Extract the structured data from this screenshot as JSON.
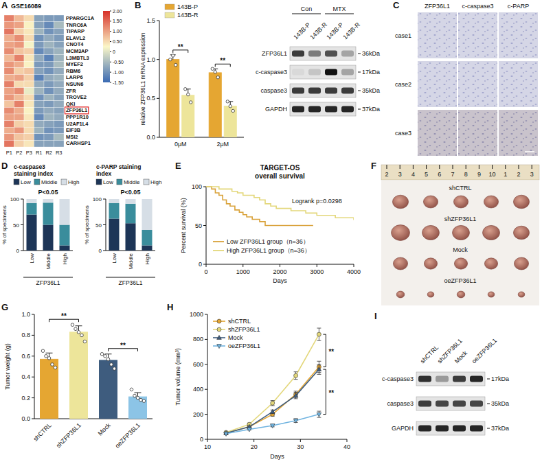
{
  "panel_letters": [
    "A",
    "B",
    "C",
    "D",
    "E",
    "F",
    "G",
    "H",
    "I"
  ],
  "chart_data": [
    {
      "type": "heatmap",
      "title": "GSE16089",
      "columns": [
        "P1",
        "P2",
        "P3",
        "R1",
        "R2",
        "R3"
      ],
      "rows": [
        "PPARGC1A",
        "TNRC6A",
        "TIPARP",
        "ELAVL2",
        "CNOT4",
        "MCM3AP",
        "L3MBTL3",
        "MYEF2",
        "RBM6",
        "LARP6",
        "NSUN6",
        "ZFR",
        "TROVE2",
        "QKI",
        "ZFP36L1",
        "PPP1R10",
        "U2AF1L4",
        "EIF3B",
        "MSI2",
        "CARHSP1"
      ],
      "cells": [
        [
          1.3,
          0.8,
          0.5,
          -0.8,
          -0.9,
          -0.9
        ],
        [
          1.1,
          1.0,
          0.3,
          -0.8,
          -1.1,
          -0.5
        ],
        [
          1.4,
          0.6,
          0.4,
          -0.6,
          -1.0,
          -0.8
        ],
        [
          0.9,
          1.2,
          0.5,
          -1.0,
          -0.7,
          -0.9
        ],
        [
          1.0,
          1.1,
          0.2,
          -0.9,
          -0.6,
          -0.8
        ],
        [
          1.2,
          0.7,
          0.6,
          -1.1,
          -0.8,
          -0.6
        ],
        [
          0.8,
          1.3,
          0.4,
          -0.7,
          -1.2,
          -0.6
        ],
        [
          1.1,
          0.9,
          0.3,
          -0.9,
          -0.9,
          -0.5
        ],
        [
          1.2,
          0.6,
          0.7,
          -0.8,
          -1.0,
          -0.7
        ],
        [
          0.9,
          1.0,
          0.6,
          -1.2,
          -0.7,
          -0.6
        ],
        [
          1.3,
          0.5,
          0.5,
          -0.7,
          -0.9,
          -0.7
        ],
        [
          1.0,
          1.2,
          0.1,
          -0.6,
          -1.0,
          -0.7
        ],
        [
          1.1,
          0.8,
          0.5,
          -1.0,
          -0.6,
          -0.8
        ],
        [
          0.7,
          1.3,
          0.4,
          -0.8,
          -0.9,
          -0.7
        ],
        [
          1.2,
          0.9,
          0.3,
          -0.9,
          -0.7,
          -0.8
        ],
        [
          1.0,
          1.0,
          0.4,
          -1.1,
          -0.6,
          -0.7
        ],
        [
          1.3,
          0.6,
          0.5,
          -0.7,
          -0.8,
          -0.9
        ],
        [
          0.9,
          1.1,
          0.5,
          -0.6,
          -1.0,
          -0.9
        ],
        [
          1.1,
          0.7,
          0.6,
          -1.0,
          -0.9,
          -0.5
        ],
        [
          1.4,
          0.6,
          0.4,
          -0.8,
          -0.8,
          -0.8
        ]
      ],
      "highlight": "ZFP36L1",
      "colorbar": {
        "range": [
          -1.5,
          2
        ],
        "ticks": [
          {
            "value": 2,
            "label": "2.00"
          },
          {
            "value": 1.5,
            "label": "1.50"
          },
          {
            "value": 1,
            "label": "1.00"
          },
          {
            "value": 0.5,
            "label": "0.50"
          },
          0,
          {
            "value": -0.5,
            "label": "-0.50"
          },
          {
            "value": -1,
            "label": "-1.00"
          },
          {
            "value": -1.5,
            "label": "-1.50"
          }
        ]
      }
    },
    {
      "type": "bar",
      "ylabel": "relative ZFP36L1 mRNA expression",
      "categories": [
        "0μM",
        "2μM"
      ],
      "series": [
        {
          "name": "143B-P",
          "color": "#E5A632",
          "values": [
            1.0,
            0.83
          ],
          "errors": [
            0.06,
            0.05
          ],
          "points": [
            [
              1.0,
              1.05,
              0.93
            ],
            [
              0.88,
              0.84,
              0.77
            ]
          ]
        },
        {
          "name": "143B-R",
          "color": "#EDE59A",
          "values": [
            0.54,
            0.4
          ],
          "errors": [
            0.08,
            0.06
          ],
          "points": [
            [
              0.62,
              0.55,
              0.45
            ],
            [
              0.46,
              0.4,
              0.34
            ]
          ]
        }
      ],
      "ylim": [
        0,
        1.5
      ],
      "yticks": [
        {
          "value": 0,
          "label": "0.0"
        },
        0.5,
        {
          "value": 1,
          "label": "1.0"
        },
        1.5
      ],
      "legend": "top",
      "annotations": [
        {
          "text": "**",
          "category": "0μM"
        },
        {
          "text": "**",
          "category": "2μM"
        }
      ]
    },
    {
      "type": "bar",
      "stacked": true,
      "title": "c-caspase3 staining index",
      "xlabel": "ZFP36L1",
      "ylabel": "% of specimens",
      "categories": [
        "Low",
        "Middle",
        "High"
      ],
      "series": [
        {
          "name": "Low",
          "color": "#1d3557",
          "values": [
            70,
            50,
            10
          ]
        },
        {
          "name": "Middle",
          "color": "#3a8d9c",
          "values": [
            22,
            43,
            40
          ]
        },
        {
          "name": "High",
          "color": "#d6dee6",
          "values": [
            8,
            7,
            50
          ]
        }
      ],
      "ylim": [
        0,
        100
      ],
      "yticks": [
        0,
        50,
        100
      ],
      "legend": "top",
      "annotation": "P<0.05"
    },
    {
      "type": "bar",
      "stacked": true,
      "title": "c-PARP staining index",
      "xlabel": "ZFP36L1",
      "ylabel": "% of specimens",
      "categories": [
        "Low",
        "Middle",
        "High"
      ],
      "series": [
        {
          "name": "Low",
          "color": "#1d3557",
          "values": [
            62,
            53,
            10
          ]
        },
        {
          "name": "Middle",
          "color": "#3a8d9c",
          "values": [
            30,
            38,
            30
          ]
        },
        {
          "name": "High",
          "color": "#d6dee6",
          "values": [
            8,
            9,
            60
          ]
        }
      ],
      "ylim": [
        0,
        100
      ],
      "yticks": [
        0,
        50,
        100
      ],
      "legend": "top",
      "annotation": "P<0.05"
    },
    {
      "type": "line",
      "line_style": "step",
      "title": "TARGET-OS overall survival",
      "annotation": "Logrank p=0.0298",
      "xlabel": "Days",
      "ylabel": "Percent survival (%)",
      "xlim": [
        0,
        4000
      ],
      "xticks": [
        0,
        1000,
        2000,
        3000,
        4000
      ],
      "ylim": [
        0,
        100
      ],
      "yticks": [
        0,
        50,
        100
      ],
      "legend": "lower left",
      "series": [
        {
          "name": "Low ZFP36L1 group（n=36）",
          "color": "#D9A23A",
          "x": [
            0,
            150,
            250,
            350,
            450,
            550,
            650,
            780,
            900,
            1000,
            1100,
            1250,
            1450,
            1600,
            2900
          ],
          "values": [
            100,
            97,
            92,
            89,
            83,
            78,
            75,
            70,
            67,
            64,
            61,
            58,
            55,
            50,
            50
          ]
        },
        {
          "name": "High ZFP36L1 group（n=36）",
          "color": "#E3D77A",
          "x": [
            0,
            350,
            700,
            850,
            1000,
            1300,
            1450,
            1600,
            1750,
            1900,
            2300,
            2700,
            3000,
            3500,
            4000
          ],
          "values": [
            100,
            97,
            94,
            92,
            89,
            86,
            83,
            78,
            75,
            72,
            69,
            66,
            63,
            60,
            57
          ]
        }
      ]
    },
    {
      "type": "bar",
      "ylabel": "Tumor weight (g)",
      "categories": [
        "shCTRL",
        "shZFP36L1",
        "Mock",
        "oeZFP36L1"
      ],
      "colors": [
        "#E5A632",
        "#EDE59A",
        "#3E5C7E",
        "#8CC4E6"
      ],
      "values": [
        0.57,
        0.83,
        0.56,
        0.21
      ],
      "errors": [
        0.06,
        0.06,
        0.06,
        0.04
      ],
      "points": [
        [
          0.65,
          0.6,
          0.58,
          0.52,
          0.49
        ],
        [
          0.9,
          0.86,
          0.83,
          0.8,
          0.74
        ],
        [
          0.62,
          0.6,
          0.57,
          0.52,
          0.48
        ],
        [
          0.28,
          0.22,
          0.2,
          0.18,
          0.17
        ]
      ],
      "ylim": [
        0,
        1
      ],
      "yticks": [
        {
          "value": 0,
          "label": "0.0"
        },
        0.2,
        0.4,
        0.6,
        0.8,
        {
          "value": 1,
          "label": "1.0"
        }
      ],
      "annotations": [
        {
          "text": "**",
          "categories": [
            "shCTRL",
            "shZFP36L1"
          ]
        },
        {
          "text": "**",
          "categories": [
            "Mock",
            "oeZFP36L1"
          ]
        }
      ]
    },
    {
      "type": "line",
      "xlabel": "Days",
      "ylabel": "Tumor volume (mm³)",
      "x": [
        14,
        19,
        24,
        29,
        34
      ],
      "series": [
        {
          "name": "shCTRL",
          "color": "#E5A632",
          "marker": "circle",
          "values": [
            50,
            100,
            200,
            360,
            580
          ],
          "errors": [
            5,
            8,
            15,
            25,
            45
          ]
        },
        {
          "name": "shZFP36L1",
          "color": "#E3D77A",
          "marker": "circle",
          "values": [
            55,
            120,
            290,
            510,
            840
          ],
          "errors": [
            5,
            10,
            20,
            30,
            50
          ]
        },
        {
          "name": "Mock",
          "color": "#3E5C7E",
          "marker": "triangle",
          "values": [
            50,
            100,
            220,
            350,
            560
          ],
          "errors": [
            5,
            8,
            15,
            25,
            40
          ]
        },
        {
          "name": "oeZFP36L1",
          "color": "#6FB3E0",
          "marker": "triangle-down",
          "values": [
            45,
            80,
            110,
            150,
            200
          ],
          "errors": [
            4,
            6,
            10,
            15,
            25
          ]
        }
      ],
      "xlim": [
        10,
        40
      ],
      "xticks": [
        10,
        20,
        30,
        40
      ],
      "ylim": [
        0,
        1000
      ],
      "yticks": [
        0,
        200,
        400,
        600,
        800,
        1000
      ],
      "legend": "upper left",
      "annotations": [
        {
          "text": "**",
          "series": [
            "shZFP36L1",
            "shCTRL"
          ]
        },
        {
          "text": "**",
          "series": [
            "Mock",
            "oeZFP36L1"
          ]
        }
      ]
    }
  ],
  "blot_b": {
    "groups": [
      "Con",
      "MTX"
    ],
    "lanes": [
      "143B-P",
      "143B-R",
      "143B-P",
      "143B-R"
    ],
    "rows": [
      {
        "label": "ZFP36L1",
        "size": "36kDa",
        "bands": [
          0.8,
          0.5,
          0.7,
          0.3
        ]
      },
      {
        "label": "c-caspase3",
        "size": "17kDa",
        "bands": [
          0.05,
          0.15,
          1.0,
          0.3
        ]
      },
      {
        "label": "caspase3",
        "size": "35kDa",
        "bands": [
          0.8,
          0.8,
          0.8,
          0.8
        ]
      },
      {
        "label": "GAPDH",
        "size": "37kDa",
        "bands": [
          0.9,
          0.9,
          0.9,
          0.9
        ]
      }
    ]
  },
  "ihc": {
    "columns": [
      "ZFP36L1",
      "c-caspase3",
      "c-PARP"
    ],
    "rows": [
      "case1",
      "case2",
      "case3"
    ]
  },
  "tumor_photo": {
    "ruler": [
      "2",
      "3",
      "4",
      "5",
      "6",
      "7",
      "8",
      "9",
      "10",
      "1",
      "2",
      "3"
    ],
    "rows": [
      {
        "label": "shCTRL",
        "sizes": [
          12,
          11,
          11,
          11,
          12
        ]
      },
      {
        "label": "shZFP36L1",
        "sizes": [
          14,
          13,
          13,
          13,
          12
        ]
      },
      {
        "label": "Mock",
        "sizes": [
          11,
          10,
          10,
          10,
          11
        ]
      },
      {
        "label": "oeZFP36L1",
        "sizes": [
          6,
          5,
          6,
          5,
          5
        ]
      }
    ]
  },
  "blot_i": {
    "lanes": [
      "shCTRL",
      "shZFP36L1",
      "Mock",
      "oeZFP36L1"
    ],
    "rows": [
      {
        "label": "c-caspase3",
        "size": "17kDa",
        "bands": [
          0.85,
          0.35,
          0.8,
          0.9
        ]
      },
      {
        "label": "caspase3",
        "size": "35kDa",
        "bands": [
          0.8,
          0.75,
          0.75,
          0.75
        ]
      },
      {
        "label": "GAPDH",
        "size": "37kDa",
        "bands": [
          0.9,
          0.9,
          0.9,
          0.9
        ]
      }
    ]
  }
}
